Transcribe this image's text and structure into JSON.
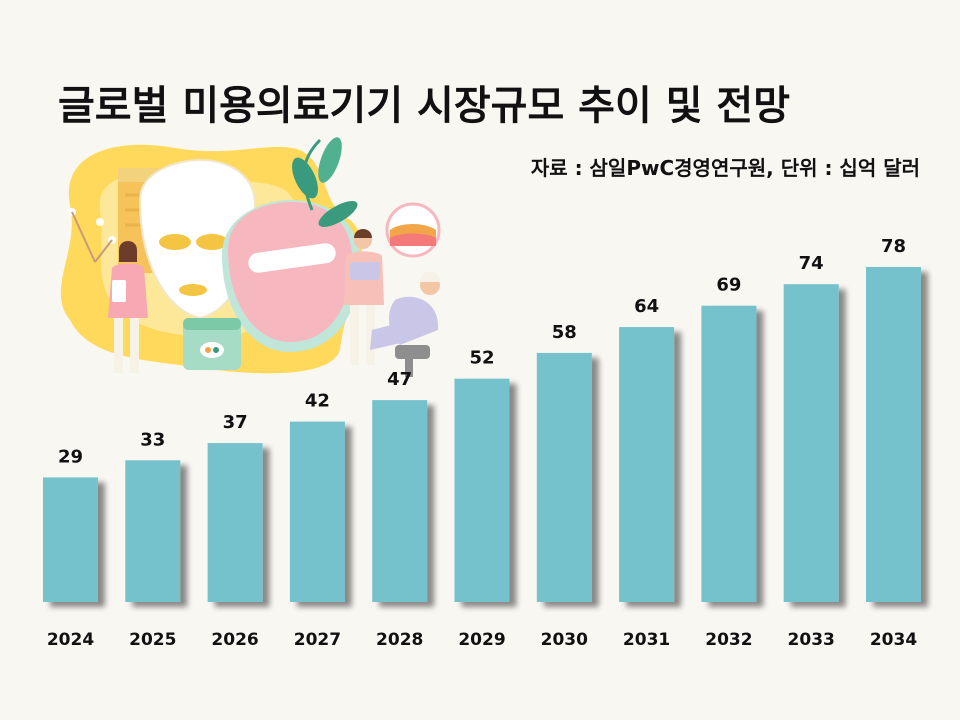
{
  "chart_data": {
    "type": "bar",
    "title": "글로벌 미용의료기기 시장규모 추이 및 전망",
    "source": "자료 : 삼일PwC경영연구원, 단위 : 십억 달러",
    "categories": [
      "2024",
      "2025",
      "2026",
      "2027",
      "2028",
      "2029",
      "2030",
      "2031",
      "2032",
      "2033",
      "2034"
    ],
    "values": [
      29,
      33,
      37,
      42,
      47,
      52,
      58,
      64,
      69,
      74,
      78
    ],
    "xlabel": "",
    "ylabel": "",
    "ylim": [
      0,
      78
    ],
    "grid": false,
    "bar_color": "#74c1cc",
    "label_color": "#111111"
  },
  "illustration": {
    "icon": "beauty-care-illustration-icon",
    "colors": {
      "yellow": "#ffd54a",
      "pale_yellow": "#fde9a0",
      "pink": "#f7b7bf",
      "mint": "#bfe6d8",
      "green": "#3a9a7e",
      "lavender": "#c9c6e8"
    }
  }
}
